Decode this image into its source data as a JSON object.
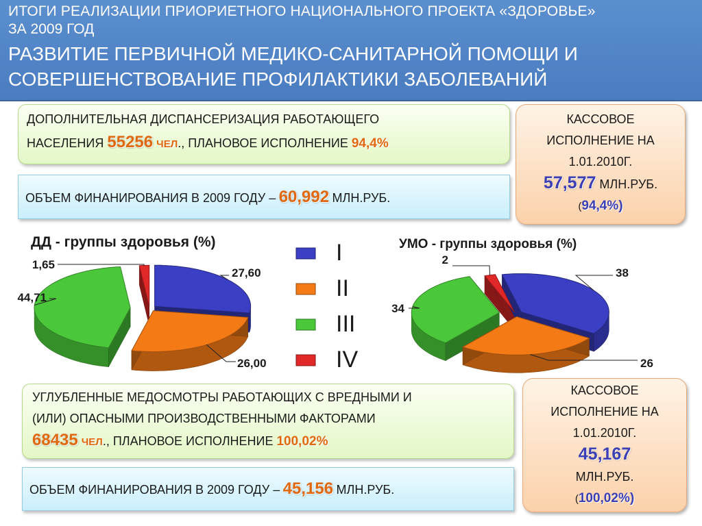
{
  "header": {
    "line1": "ИТОГИ РЕАЛИЗАЦИИ ПРИОРИЕТНОГО НАЦИОНАЛЬНОГО ПРОЕКТА «ЗДОРОВЬЕ»",
    "line2": "ЗА 2009 ГОД",
    "line3": "РАЗВИТИЕ ПЕРВИЧНОЙ МЕДИКО-САНИТАРНОЙ ПОМОЩИ И",
    "line4": "СОВЕРШЕНСТВОВАНИЕ ПРОФИЛАКТИКИ ЗАБОЛЕВАНИЙ"
  },
  "dd_box": {
    "line1": "ДОПОЛНИТЕЛЬНАЯ ДИСПАНСЕРИЗАЦИЯ РАБОТАЮЩЕГО",
    "prefix": "НАСЕЛЕНИЯ",
    "count": "55256",
    "unit": "чел",
    "middle": "., ПЛАНОВОЕ ИСПОЛНЕНИЕ",
    "percent": "94,4%"
  },
  "dd_funding": {
    "prefix": "ОБЪЕМ ФИНАНИРОВАНИЯ В 2009 ГОДУ –",
    "amount": "60,992",
    "unit": "МЛН.РУБ."
  },
  "dd_cash": {
    "line1": "КАССОВОЕ",
    "line2": "ИСПОЛНЕНИЕ НА",
    "line3": "1.01.2010Г.",
    "amount": "57,577",
    "unit": "МЛН.РУБ.",
    "open": "(",
    "percent": "94,4%)"
  },
  "umo_box": {
    "line1": "УГЛУБЛЕННЫЕ МЕДОСМОТРЫ РАБОТАЮЩИХ С ВРЕДНЫМИ И",
    "line2": "(ИЛИ) ОПАСНЫМИ ПРОИЗВОДСТВЕННЫМИ ФАКТОРАМИ",
    "count": "68435",
    "unit": "чел",
    "middle": "., ПЛАНОВОЕ ИСПОЛНЕНИЕ",
    "percent": "100,02%"
  },
  "umo_funding": {
    "prefix": "ОБЪЕМ ФИНАНИРОВАНИЯ В 2009 ГОДУ –",
    "amount": "45,156",
    "unit": "МЛН.РУБ."
  },
  "umo_cash": {
    "line1": "КАССОВОЕ",
    "line2": "ИСПОЛНЕНИЕ НА",
    "line3": "1.01.2010Г.",
    "amount": "45,167",
    "unit": "МЛН.РУБ.",
    "open": "(",
    "percent": "100,02%)"
  },
  "legend": {
    "items": [
      {
        "label": "I",
        "color": "#3b3fc4"
      },
      {
        "label": "II",
        "color": "#f47a16"
      },
      {
        "label": "III",
        "color": "#4bc83a"
      },
      {
        "label": "IV",
        "color": "#e02828"
      }
    ]
  },
  "chart_data": [
    {
      "type": "pie",
      "title": "ДД - группы здоровья (%)",
      "categories": [
        "I",
        "II",
        "III",
        "IV"
      ],
      "values": [
        27.6,
        26.0,
        44.71,
        1.65
      ],
      "labels": [
        "27,60",
        "26,00",
        "44,71",
        "1,65"
      ],
      "colors": [
        "#3b3fc4",
        "#f47a16",
        "#4bc83a",
        "#e02828"
      ],
      "style": "3d-exploded"
    },
    {
      "type": "pie",
      "title": "УМО - группы здоровья (%)",
      "categories": [
        "I",
        "II",
        "III",
        "IV"
      ],
      "values": [
        38,
        26,
        34,
        2
      ],
      "labels": [
        "38",
        "26",
        "34",
        "2"
      ],
      "colors": [
        "#3b3fc4",
        "#f47a16",
        "#4bc83a",
        "#e02828"
      ],
      "style": "3d-exploded"
    }
  ]
}
